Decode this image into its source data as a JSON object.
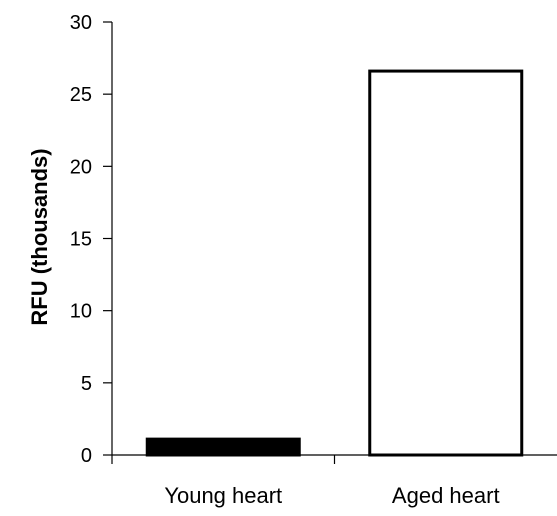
{
  "chart_data": {
    "type": "bar",
    "categories": [
      "Young heart",
      "Aged heart"
    ],
    "values": [
      1.1,
      26.6
    ],
    "title": "",
    "xlabel": "",
    "ylabel": "RFU (thousands)",
    "ylim": [
      0,
      30
    ],
    "yticks": [
      0,
      5,
      10,
      15,
      20,
      25,
      30
    ],
    "grid": false,
    "bar_fills": [
      "#000000",
      "#ffffff"
    ],
    "bar_stroke": "#000000"
  }
}
